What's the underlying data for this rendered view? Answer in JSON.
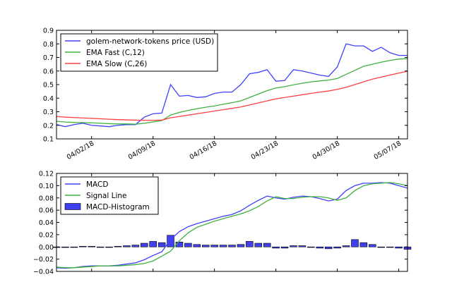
{
  "chart_data": [
    {
      "type": "line",
      "x": [
        "03/29/18",
        "03/30/18",
        "03/31/18",
        "04/01/18",
        "04/02/18",
        "04/03/18",
        "04/04/18",
        "04/05/18",
        "04/06/18",
        "04/07/18",
        "04/08/18",
        "04/09/18",
        "04/10/18",
        "04/11/18",
        "04/12/18",
        "04/13/18",
        "04/14/18",
        "04/15/18",
        "04/16/18",
        "04/17/18",
        "04/18/18",
        "04/19/18",
        "04/20/18",
        "04/21/18",
        "04/22/18",
        "04/23/18",
        "04/24/18",
        "04/25/18",
        "04/26/18",
        "04/27/18",
        "04/28/18",
        "04/29/18",
        "04/30/18",
        "05/01/18",
        "05/02/18",
        "05/03/18",
        "05/04/18",
        "05/05/18",
        "05/06/18",
        "05/07/18",
        "05/08/18"
      ],
      "xticks": [
        "04/02/18",
        "04/09/18",
        "04/16/18",
        "04/23/18",
        "04/30/18",
        "05/07/18"
      ],
      "series": [
        {
          "name": "golem-network-tokens price (USD)",
          "color": "#4040ff",
          "values": [
            0.205,
            0.19,
            0.205,
            0.215,
            0.2,
            0.195,
            0.19,
            0.2,
            0.205,
            0.205,
            0.26,
            0.285,
            0.29,
            0.5,
            0.415,
            0.42,
            0.405,
            0.41,
            0.435,
            0.445,
            0.445,
            0.5,
            0.58,
            0.59,
            0.61,
            0.525,
            0.53,
            0.61,
            0.6,
            0.585,
            0.57,
            0.56,
            0.63,
            0.8,
            0.785,
            0.785,
            0.745,
            0.775,
            0.735,
            0.715,
            0.715
          ]
        },
        {
          "name": "EMA Fast (C,12)",
          "color": "#40b040",
          "values": [
            0.23,
            0.224,
            0.221,
            0.22,
            0.218,
            0.215,
            0.212,
            0.21,
            0.21,
            0.208,
            0.215,
            0.225,
            0.235,
            0.275,
            0.295,
            0.31,
            0.322,
            0.333,
            0.343,
            0.355,
            0.367,
            0.38,
            0.405,
            0.43,
            0.455,
            0.475,
            0.485,
            0.498,
            0.51,
            0.52,
            0.527,
            0.533,
            0.545,
            0.575,
            0.605,
            0.635,
            0.65,
            0.665,
            0.678,
            0.688,
            0.692
          ]
        },
        {
          "name": "EMA Slow (C,26)",
          "color": "#ff4040",
          "values": [
            0.265,
            0.26,
            0.257,
            0.254,
            0.251,
            0.248,
            0.245,
            0.242,
            0.24,
            0.238,
            0.237,
            0.237,
            0.238,
            0.255,
            0.265,
            0.275,
            0.285,
            0.295,
            0.305,
            0.315,
            0.325,
            0.335,
            0.35,
            0.365,
            0.38,
            0.395,
            0.405,
            0.415,
            0.425,
            0.435,
            0.445,
            0.453,
            0.465,
            0.48,
            0.5,
            0.52,
            0.54,
            0.555,
            0.57,
            0.585,
            0.598
          ]
        }
      ],
      "ylim": [
        0.1,
        0.9
      ],
      "yticks": [
        "0.1",
        "0.2",
        "0.3",
        "0.4",
        "0.5",
        "0.6",
        "0.7",
        "0.8",
        "0.9"
      ],
      "legend": "top-left",
      "grid": false
    },
    {
      "type": "line",
      "x": [
        "03/29/18",
        "03/30/18",
        "03/31/18",
        "04/01/18",
        "04/02/18",
        "04/03/18",
        "04/04/18",
        "04/05/18",
        "04/06/18",
        "04/07/18",
        "04/08/18",
        "04/09/18",
        "04/10/18",
        "04/11/18",
        "04/12/18",
        "04/13/18",
        "04/14/18",
        "04/15/18",
        "04/16/18",
        "04/17/18",
        "04/18/18",
        "04/19/18",
        "04/20/18",
        "04/21/18",
        "04/22/18",
        "04/23/18",
        "04/24/18",
        "04/25/18",
        "04/26/18",
        "04/27/18",
        "04/28/18",
        "04/29/18",
        "04/30/18",
        "05/01/18",
        "05/02/18",
        "05/03/18",
        "05/04/18",
        "05/05/18",
        "05/06/18",
        "05/07/18",
        "05/08/18"
      ],
      "series": [
        {
          "name": "MACD",
          "color": "#4040ff",
          "values": [
            -0.034,
            -0.035,
            -0.034,
            -0.032,
            -0.031,
            -0.031,
            -0.031,
            -0.03,
            -0.028,
            -0.026,
            -0.021,
            -0.014,
            -0.008,
            0.012,
            0.025,
            0.033,
            0.038,
            0.042,
            0.046,
            0.05,
            0.053,
            0.059,
            0.068,
            0.076,
            0.083,
            0.08,
            0.078,
            0.081,
            0.083,
            0.082,
            0.079,
            0.075,
            0.078,
            0.092,
            0.1,
            0.104,
            0.104,
            0.105,
            0.104,
            0.1,
            0.096
          ]
        },
        {
          "name": "Signal Line",
          "color": "#40b040",
          "values": [
            -0.033,
            -0.034,
            -0.034,
            -0.033,
            -0.032,
            -0.031,
            -0.031,
            -0.031,
            -0.03,
            -0.029,
            -0.027,
            -0.023,
            -0.015,
            -0.007,
            0.01,
            0.023,
            0.032,
            0.037,
            0.042,
            0.046,
            0.05,
            0.054,
            0.059,
            0.066,
            0.075,
            0.082,
            0.079,
            0.079,
            0.081,
            0.082,
            0.082,
            0.08,
            0.076,
            0.08,
            0.092,
            0.1,
            0.103,
            0.104,
            0.105,
            0.103,
            0.1
          ]
        },
        {
          "name": "MACD-Histogram",
          "color": "#4040ee",
          "kind": "bar",
          "values": [
            -0.001,
            -0.001,
            0.0,
            0.001,
            0.001,
            0.0,
            0.0,
            0.001,
            0.002,
            0.003,
            0.006,
            0.009,
            0.007,
            0.019,
            0.008,
            0.006,
            0.004,
            0.003,
            0.003,
            0.003,
            0.003,
            0.004,
            0.009,
            0.006,
            0.006,
            -0.002,
            -0.002,
            0.002,
            0.002,
            0.0,
            -0.002,
            -0.003,
            -0.002,
            0.002,
            0.012,
            0.007,
            0.004,
            0.0,
            0.0,
            -0.002,
            -0.004
          ]
        }
      ],
      "ylim": [
        -0.04,
        0.12
      ],
      "yticks": [
        "−0.04",
        "−0.02",
        "0.00",
        "0.02",
        "0.04",
        "0.06",
        "0.08",
        "0.10",
        "0.12"
      ],
      "legend": "top-left",
      "grid": false
    }
  ]
}
